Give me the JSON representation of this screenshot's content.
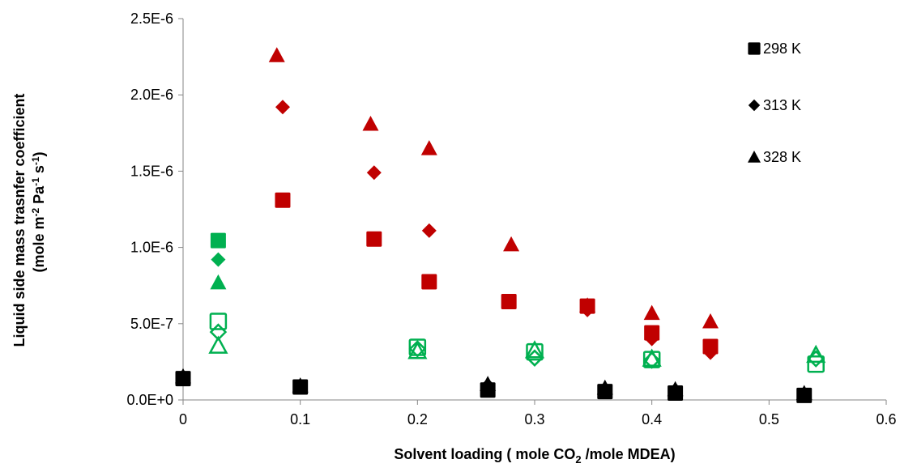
{
  "chart_data": {
    "type": "scatter",
    "title": "",
    "xlabel": {
      "pre": "Solvent loading ( mole CO",
      "sub": "2",
      "post": " /mole MDEA)"
    },
    "ylabel": {
      "line1": "Liquid side mass trasnfer coefficient",
      "line2": [
        {
          "t": "(mole m"
        },
        {
          "t": "-2",
          "sup": true
        },
        {
          "t": " Pa"
        },
        {
          "t": "-1",
          "sup": true
        },
        {
          "t": " s"
        },
        {
          "t": "-1",
          "sup": true
        },
        {
          "t": ")"
        }
      ]
    },
    "xlim": [
      0,
      0.6
    ],
    "ylim": [
      0,
      2.5e-06
    ],
    "x_ticks": [
      {
        "v": 0,
        "label": "0"
      },
      {
        "v": 0.1,
        "label": "0.1"
      },
      {
        "v": 0.2,
        "label": "0.2"
      },
      {
        "v": 0.3,
        "label": "0.3"
      },
      {
        "v": 0.4,
        "label": "0.4"
      },
      {
        "v": 0.5,
        "label": "0.5"
      },
      {
        "v": 0.6,
        "label": "0.6"
      }
    ],
    "y_ticks": [
      {
        "v": 0,
        "label": "0.0E+0"
      },
      {
        "v": 5e-07,
        "label": "5.0E-7"
      },
      {
        "v": 1e-06,
        "label": "1.0E-6"
      },
      {
        "v": 1.5e-06,
        "label": "1.5E-6"
      },
      {
        "v": 2e-06,
        "label": "2.0E-6"
      },
      {
        "v": 2.5e-06,
        "label": "2.5E-6"
      }
    ],
    "grid": false,
    "legend_position": "top-right",
    "legend": [
      {
        "label": "298 K",
        "marker": "square"
      },
      {
        "label": "313 K",
        "marker": "diamond"
      },
      {
        "label": "328 K",
        "marker": "triangle"
      }
    ],
    "colors": {
      "black": "#000000",
      "red": "#c00000",
      "green": "#00b050"
    },
    "series": [
      {
        "marker": "square",
        "color": "#000000",
        "filled": true,
        "points": [
          [
            0,
            1.4e-07
          ],
          [
            0.1,
            8.5e-08
          ],
          [
            0.26,
            6.5e-08
          ],
          [
            0.36,
            5.5e-08
          ],
          [
            0.42,
            4.5e-08
          ],
          [
            0.53,
            3e-08
          ]
        ]
      },
      {
        "marker": "diamond",
        "color": "#000000",
        "filled": true,
        "points": [
          [
            0,
            1.45e-07
          ],
          [
            0.1,
            9e-08
          ],
          [
            0.26,
            9.5e-08
          ],
          [
            0.36,
            7e-08
          ],
          [
            0.42,
            6.5e-08
          ],
          [
            0.53,
            4e-08
          ]
        ]
      },
      {
        "marker": "triangle",
        "color": "#000000",
        "filled": true,
        "points": [
          [
            0,
            1.55e-07
          ],
          [
            0.1,
            9.5e-08
          ],
          [
            0.26,
            1.05e-07
          ],
          [
            0.36,
            8e-08
          ],
          [
            0.42,
            7e-08
          ],
          [
            0.53,
            4.5e-08
          ]
        ]
      },
      {
        "marker": "square",
        "color": "#c00000",
        "filled": true,
        "points": [
          [
            0.085,
            1.31e-06
          ],
          [
            0.163,
            1.055e-06
          ],
          [
            0.21,
            7.75e-07
          ],
          [
            0.278,
            6.45e-07
          ],
          [
            0.345,
            6.15e-07
          ],
          [
            0.4,
            4.4e-07
          ],
          [
            0.45,
            3.5e-07
          ]
        ]
      },
      {
        "marker": "diamond",
        "color": "#c00000",
        "filled": true,
        "points": [
          [
            0.085,
            1.92e-06
          ],
          [
            0.163,
            1.49e-06
          ],
          [
            0.21,
            1.11e-06
          ],
          [
            0.345,
            5.9e-07
          ],
          [
            0.4,
            4e-07
          ],
          [
            0.45,
            3.1e-07
          ]
        ]
      },
      {
        "marker": "triangle",
        "color": "#c00000",
        "filled": true,
        "points": [
          [
            0.08,
            2.26e-06
          ],
          [
            0.16,
            1.81e-06
          ],
          [
            0.21,
            1.65e-06
          ],
          [
            0.28,
            1.02e-06
          ],
          [
            0.345,
            6.2e-07
          ],
          [
            0.4,
            5.7e-07
          ],
          [
            0.45,
            5.15e-07
          ]
        ]
      },
      {
        "marker": "square",
        "color": "#00b050",
        "filled": true,
        "points": [
          [
            0.03,
            1.045e-06
          ]
        ]
      },
      {
        "marker": "diamond",
        "color": "#00b050",
        "filled": true,
        "points": [
          [
            0.03,
            9.2e-07
          ]
        ]
      },
      {
        "marker": "triangle",
        "color": "#00b050",
        "filled": true,
        "points": [
          [
            0.03,
            7.7e-07
          ]
        ]
      },
      {
        "marker": "square",
        "color": "#00b050",
        "filled": false,
        "points": [
          [
            0.03,
            5.15e-07
          ],
          [
            0.2,
            3.45e-07
          ],
          [
            0.3,
            3.15e-07
          ],
          [
            0.4,
            2.65e-07
          ],
          [
            0.54,
            2.35e-07
          ]
        ]
      },
      {
        "marker": "diamond",
        "color": "#00b050",
        "filled": false,
        "points": [
          [
            0.03,
            4.45e-07
          ],
          [
            0.2,
            3.35e-07
          ],
          [
            0.3,
            2.75e-07
          ],
          [
            0.4,
            2.6e-07
          ],
          [
            0.54,
            2.7e-07
          ]
        ]
      },
      {
        "marker": "triangle",
        "color": "#00b050",
        "filled": false,
        "points": [
          [
            0.03,
            3.55e-07
          ],
          [
            0.2,
            3.2e-07
          ],
          [
            0.3,
            3.25e-07
          ],
          [
            0.4,
            2.7e-07
          ],
          [
            0.54,
            2.95e-07
          ]
        ]
      }
    ]
  }
}
